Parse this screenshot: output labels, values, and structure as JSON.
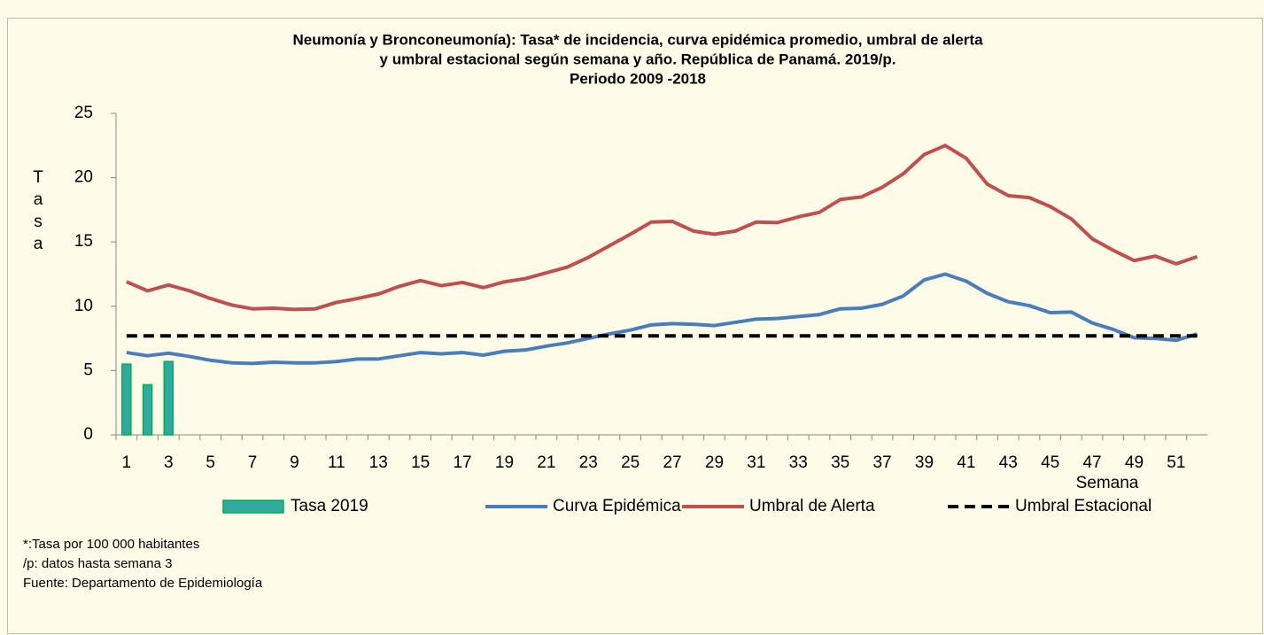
{
  "chart_data": {
    "type": "bar-line",
    "title": [
      "Neumonía y Bronconeumonía): Tasa* de incidencia, curva epidémica promedio, umbral de alerta",
      "y umbral estacional según semana y año. República de Panamá. 2019/p.",
      "Periodo 2009 -2018"
    ],
    "y_label": "Tasa",
    "x_label": "Semana",
    "categories": [
      1,
      null,
      3,
      null,
      5,
      null,
      7,
      null,
      9,
      null,
      11,
      null,
      13,
      null,
      15,
      null,
      17,
      null,
      19,
      null,
      21,
      null,
      23,
      null,
      25,
      null,
      27,
      null,
      29,
      null,
      31,
      null,
      33,
      null,
      35,
      null,
      37,
      null,
      39,
      null,
      41,
      null,
      43,
      null,
      45,
      null,
      47,
      null,
      49,
      null,
      51,
      null
    ],
    "ylim": [
      0,
      25
    ],
    "yticks": [
      0,
      5,
      10,
      15,
      20,
      25
    ],
    "series": [
      {
        "name": "Tasa 2019",
        "kind": "bar",
        "color": "#31a8a0",
        "values": [
          5.5,
          3.9,
          5.7,
          null,
          null,
          null,
          null,
          null,
          null,
          null,
          null,
          null,
          null,
          null,
          null,
          null,
          null,
          null,
          null,
          null,
          null,
          null,
          null,
          null,
          null,
          null,
          null,
          null,
          null,
          null,
          null,
          null,
          null,
          null,
          null,
          null,
          null,
          null,
          null,
          null,
          null,
          null,
          null,
          null,
          null,
          null,
          null,
          null,
          null,
          null,
          null,
          null
        ]
      },
      {
        "name": "Curva Epidémica",
        "kind": "line",
        "color": "#4a7ebb",
        "values": [
          6.4,
          6.15,
          6.35,
          6.1,
          5.8,
          5.6,
          5.55,
          5.65,
          5.6,
          5.6,
          5.7,
          5.9,
          5.9,
          6.15,
          6.4,
          6.3,
          6.4,
          6.2,
          6.5,
          6.6,
          6.9,
          7.15,
          7.5,
          7.85,
          8.15,
          8.55,
          8.65,
          8.6,
          8.5,
          8.75,
          9.0,
          9.05,
          9.2,
          9.35,
          9.8,
          9.85,
          10.15,
          10.8,
          12.05,
          12.5,
          11.95,
          11.0,
          10.35,
          10.05,
          9.5,
          9.55,
          8.7,
          8.2,
          7.55,
          7.5,
          7.35,
          7.85
        ]
      },
      {
        "name": "Umbral de Alerta",
        "kind": "line",
        "color": "#c0504d",
        "values": [
          11.9,
          11.2,
          11.65,
          11.2,
          10.6,
          10.1,
          9.8,
          9.85,
          9.75,
          9.8,
          10.3,
          10.6,
          10.95,
          11.55,
          12.0,
          11.6,
          11.85,
          11.45,
          11.9,
          12.15,
          12.6,
          13.05,
          13.8,
          14.7,
          15.6,
          16.55,
          16.6,
          15.85,
          15.6,
          15.85,
          16.55,
          16.5,
          16.95,
          17.3,
          18.3,
          18.5,
          19.25,
          20.3,
          21.8,
          22.5,
          21.5,
          19.5,
          18.6,
          18.45,
          17.75,
          16.8,
          15.25,
          14.35,
          13.55,
          13.9,
          13.3,
          13.85
        ]
      },
      {
        "name": "Umbral Estacional",
        "kind": "dashed",
        "color": "#000000",
        "values": [
          7.7,
          7.7,
          7.7,
          7.7,
          7.7,
          7.7,
          7.7,
          7.7,
          7.7,
          7.7,
          7.7,
          7.7,
          7.7,
          7.7,
          7.7,
          7.7,
          7.7,
          7.7,
          7.7,
          7.7,
          7.7,
          7.7,
          7.7,
          7.7,
          7.7,
          7.7,
          7.7,
          7.7,
          7.7,
          7.7,
          7.7,
          7.7,
          7.7,
          7.7,
          7.7,
          7.7,
          7.7,
          7.7,
          7.7,
          7.7,
          7.7,
          7.7,
          7.7,
          7.7,
          7.7,
          7.7,
          7.7,
          7.7,
          7.7,
          7.7,
          7.7,
          7.7
        ]
      }
    ],
    "footnotes": [
      "*:Tasa por 100 000 habitantes",
      "/p: datos hasta semana  3",
      "Fuente: Departamento de Epidemiología"
    ]
  }
}
